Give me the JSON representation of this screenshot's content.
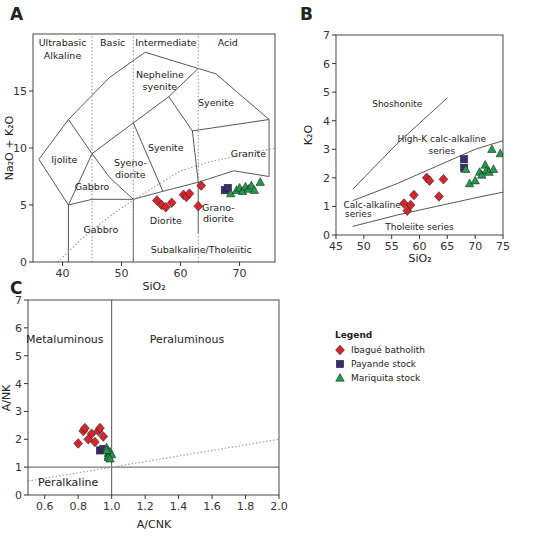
{
  "chart_data": [
    {
      "type": "scatter",
      "title": "A",
      "x_label": "SiO₂",
      "y_label": "Na₂O + K₂O",
      "xlim": [
        35,
        76
      ],
      "ylim": [
        0,
        20
      ],
      "xticks": [
        40,
        50,
        60,
        70
      ],
      "yticks": [
        0,
        5,
        10,
        15
      ],
      "grid": false,
      "lines": [
        {
          "line_style": "solid",
          "points": [
            [
              41,
              12.5
            ],
            [
              48,
              16.2
            ],
            [
              54,
              18.4
            ],
            [
              66,
              16.5
            ],
            [
              75,
              12.5
            ],
            [
              75,
              7.5
            ],
            [
              69,
              8
            ]
          ]
        },
        {
          "line_style": "solid",
          "points": [
            [
              41,
              12.5
            ],
            [
              36,
              9
            ],
            [
              41,
              5
            ],
            [
              45,
              9.5
            ],
            [
              41,
              12.5
            ]
          ]
        },
        {
          "line_style": "solid",
          "points": [
            [
              45,
              9.5
            ],
            [
              52,
              12.2
            ],
            [
              58,
              14.5
            ],
            [
              63,
              16.98
            ]
          ]
        },
        {
          "line_style": "solid",
          "points": [
            [
              58,
              14.5
            ],
            [
              62,
              11.5
            ],
            [
              75,
              12.5
            ]
          ]
        },
        {
          "line_style": "solid",
          "points": [
            [
              62,
              11.5
            ],
            [
              63,
              7
            ]
          ]
        },
        {
          "line_style": "solid",
          "points": [
            [
              52,
              12.2
            ],
            [
              57,
              6.2
            ]
          ]
        },
        {
          "line_style": "solid",
          "points": [
            [
              45,
              9.5
            ],
            [
              48,
              7.4
            ],
            [
              52,
              5.5
            ]
          ]
        },
        {
          "line_style": "solid",
          "points": [
            [
              41,
              5
            ],
            [
              45,
              5.5
            ],
            [
              52,
              5.5
            ],
            [
              57,
              6.2
            ],
            [
              63,
              7
            ],
            [
              69,
              8
            ]
          ]
        },
        {
          "line_style": "solid",
          "points": [
            [
              41,
              5
            ],
            [
              41,
              0
            ]
          ]
        },
        {
          "line_style": "solid",
          "points": [
            [
              52,
              5.5
            ],
            [
              52,
              0
            ]
          ]
        },
        {
          "line_style": "solid",
          "points": [
            [
              63,
              7
            ],
            [
              63,
              2.5
            ]
          ]
        },
        {
          "line_style": "dotted",
          "points": [
            [
              45,
              0
            ],
            [
              45,
              20
            ]
          ]
        },
        {
          "line_style": "dotted",
          "points": [
            [
              52,
              0
            ],
            [
              52,
              20
            ]
          ]
        },
        {
          "line_style": "dotted",
          "points": [
            [
              63,
              0
            ],
            [
              63,
              20
            ]
          ]
        },
        {
          "line_style": "dotted",
          "points": [
            [
              39.2,
              0
            ],
            [
              40,
              0.4
            ],
            [
              43.2,
              2
            ],
            [
              45,
              2.8
            ],
            [
              48,
              4
            ],
            [
              50,
              4.75
            ],
            [
              53.7,
              6
            ],
            [
              55,
              6.4
            ],
            [
              60,
              8
            ],
            [
              65,
              8.8
            ],
            [
              76,
              10
            ]
          ]
        }
      ],
      "annotations": [
        {
          "text": "Ultrabasic",
          "x": 40,
          "y": 19.2
        },
        {
          "text": "Alkaline",
          "x": 40,
          "y": 18.1
        },
        {
          "text": "Basic",
          "x": 48.5,
          "y": 19.2
        },
        {
          "text": "Intermediate",
          "x": 57.5,
          "y": 19.2
        },
        {
          "text": "Acid",
          "x": 68,
          "y": 19.2
        },
        {
          "text": "Nepheline",
          "x": 56.5,
          "y": 16.4
        },
        {
          "text": "syenite",
          "x": 56.5,
          "y": 15.4
        },
        {
          "text": "Syenite",
          "x": 66,
          "y": 14
        },
        {
          "text": "Syenite",
          "x": 57.5,
          "y": 10
        },
        {
          "text": "Syeno-",
          "x": 51.5,
          "y": 8.7
        },
        {
          "text": "diorite",
          "x": 51.5,
          "y": 7.7
        },
        {
          "text": "Ijolite",
          "x": 40.3,
          "y": 9
        },
        {
          "text": "Gabbro",
          "x": 45,
          "y": 6.6
        },
        {
          "text": "Gabbro",
          "x": 46.5,
          "y": 2.8
        },
        {
          "text": "Diorite",
          "x": 57.5,
          "y": 3.6
        },
        {
          "text": "Grano-",
          "x": 66.4,
          "y": 4.8
        },
        {
          "text": "diorite",
          "x": 66.4,
          "y": 3.8
        },
        {
          "text": "Granite",
          "x": 71.5,
          "y": 9.5
        },
        {
          "text": "Subalkaline/Tholeiitic",
          "x": 63.5,
          "y": 1.1
        }
      ],
      "series": [
        {
          "color": "#d7262b",
          "marker": "diamond",
          "x": [
            56.0,
            56.8,
            57.5,
            58.5,
            60.5,
            61.0,
            61.5,
            63.0,
            63.5
          ],
          "values": [
            5.4,
            5.0,
            4.8,
            5.2,
            5.9,
            5.7,
            6.0,
            4.9,
            6.7
          ]
        },
        {
          "color": "#3d2a7a",
          "marker": "square",
          "x": [
            67.5,
            68.0
          ],
          "values": [
            6.3,
            6.5
          ]
        },
        {
          "color": "#1f9e4a",
          "marker": "triangle",
          "x": [
            68.5,
            69.5,
            70.0,
            70.5,
            71.0,
            71.5,
            72.0,
            72.5,
            73.5
          ],
          "values": [
            6.0,
            6.3,
            6.5,
            6.2,
            6.6,
            6.4,
            6.7,
            6.3,
            7.0
          ]
        }
      ]
    },
    {
      "type": "scatter",
      "title": "B",
      "x_label": "SiO₂",
      "y_label": "K₂O",
      "xlim": [
        45,
        75
      ],
      "ylim": [
        0,
        7
      ],
      "xticks": [
        45,
        50,
        55,
        60,
        65,
        70,
        75
      ],
      "yticks": [
        0,
        1,
        2,
        3,
        4,
        5,
        6,
        7
      ],
      "grid": false,
      "lines": [
        {
          "line_style": "solid",
          "points": [
            [
              48,
              1.6
            ],
            [
              56,
              3.2
            ],
            [
              65,
              4.8
            ]
          ]
        },
        {
          "line_style": "solid",
          "points": [
            [
              48,
              1.2
            ],
            [
              56,
              1.8
            ],
            [
              63,
              2.4
            ],
            [
              70,
              3.0
            ],
            [
              75,
              3.3
            ]
          ]
        },
        {
          "line_style": "solid",
          "points": [
            [
              48,
              0.3
            ],
            [
              56,
              0.7
            ],
            [
              63,
              1.0
            ],
            [
              70,
              1.3
            ],
            [
              75,
              1.5
            ]
          ]
        }
      ],
      "annotations": [
        {
          "text": "Shoshonite",
          "x": 56,
          "y": 4.6
        },
        {
          "text": "High-K calc-alkaline",
          "x": 64,
          "y": 3.35
        },
        {
          "text": "series",
          "x": 64,
          "y": 2.95
        },
        {
          "text": "Calc-alkaline",
          "x": 51.5,
          "y": 1.05
        },
        {
          "text": "series",
          "x": 49,
          "y": 0.75
        },
        {
          "text": "Tholeiite series",
          "x": 60,
          "y": 0.3
        }
      ],
      "series": [
        {
          "color": "#d7262b",
          "marker": "diamond",
          "x": [
            57.2,
            57.8,
            58.4,
            59.0,
            61.3,
            61.8,
            63.5,
            64.3
          ],
          "values": [
            1.1,
            0.85,
            1.05,
            1.4,
            2.0,
            1.9,
            1.35,
            1.95
          ]
        },
        {
          "color": "#3d2a7a",
          "marker": "square",
          "x": [
            68,
            68
          ],
          "values": [
            2.65,
            2.35
          ]
        },
        {
          "color": "#1f9e4a",
          "marker": "triangle",
          "x": [
            68.3,
            69.0,
            70.0,
            70.8,
            71.2,
            71.8,
            72.0,
            72.5,
            73.0,
            73.3,
            74.5
          ],
          "values": [
            2.3,
            1.8,
            1.9,
            2.2,
            2.1,
            2.45,
            2.25,
            2.2,
            3.0,
            2.3,
            2.85
          ]
        }
      ]
    },
    {
      "type": "scatter",
      "title": "C",
      "x_label": "A/CNK",
      "y_label": "A/NK",
      "xlim": [
        0.5,
        2.0
      ],
      "ylim": [
        0,
        7
      ],
      "xticks": [
        0.6,
        0.8,
        {
          "value": 1,
          "label": "1.0"
        },
        1.2,
        1.4,
        1.6,
        1.8,
        {
          "value": 2,
          "label": "2.0"
        }
      ],
      "yticks": [
        0,
        1,
        2,
        3,
        4,
        5,
        6,
        7
      ],
      "grid": false,
      "legend": "right",
      "legend_title": "Legend",
      "lines": [
        {
          "line_style": "solid",
          "points": [
            [
              1,
              0
            ],
            [
              1,
              7
            ]
          ]
        },
        {
          "line_style": "solid",
          "points": [
            [
              0.5,
              1
            ],
            [
              2,
              1
            ]
          ]
        },
        {
          "line_style": "dotted",
          "points": [
            [
              0.5,
              0.5
            ],
            [
              2,
              2
            ]
          ]
        }
      ],
      "annotations": [
        {
          "text": "Metaluminous",
          "x": 0.72,
          "y": 5.6
        },
        {
          "text": "Peraluminous",
          "x": 1.45,
          "y": 5.6
        },
        {
          "text": "Peralkaline",
          "x": 0.74,
          "y": 0.45
        }
      ],
      "series": [
        {
          "name": "Ibagué batholith",
          "color": "#d7262b",
          "marker": "diamond",
          "x": [
            0.8,
            0.83,
            0.84,
            0.86,
            0.88,
            0.9,
            0.92,
            0.93,
            0.95
          ],
          "values": [
            1.85,
            2.3,
            2.4,
            2.0,
            2.2,
            1.9,
            2.3,
            2.4,
            2.1
          ]
        },
        {
          "name": "Payande stock",
          "color": "#3d2a7a",
          "marker": "square",
          "x": [
            0.93,
            0.95
          ],
          "values": [
            1.6,
            1.65
          ]
        },
        {
          "name": "Mariquita stock",
          "color": "#1f9e4a",
          "marker": "triangle",
          "x": [
            0.97,
            0.98,
            0.98,
            0.99,
            1.0,
            0.98,
            0.97,
            0.99
          ],
          "values": [
            1.7,
            1.5,
            1.4,
            1.55,
            1.45,
            1.35,
            1.6,
            1.3
          ]
        }
      ]
    }
  ]
}
